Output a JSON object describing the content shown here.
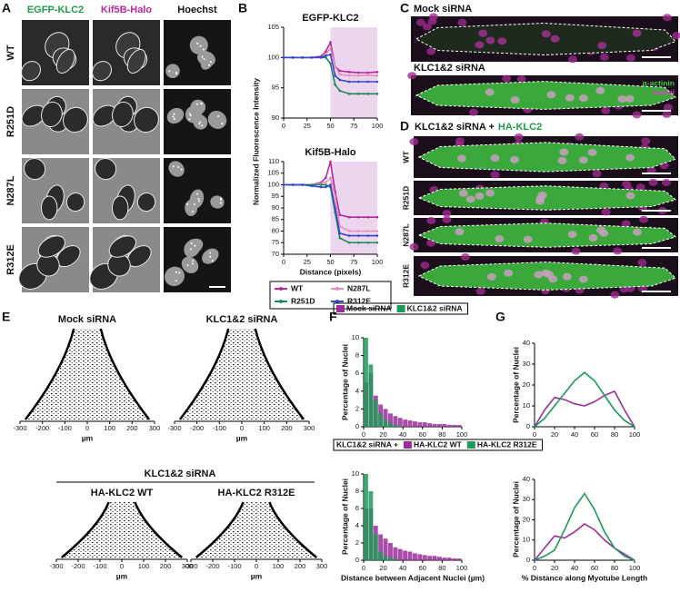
{
  "figure": {
    "panel_labels": [
      "A",
      "B",
      "C",
      "D",
      "E",
      "F",
      "G"
    ],
    "panel_a": {
      "columns": [
        "EGFP-KLC2",
        "Kif5B-Halo",
        "Hoechst"
      ],
      "rows": [
        "WT",
        "R251D",
        "N287L",
        "R312E"
      ]
    },
    "panel_c": {
      "titles": [
        "Mock siRNA",
        "KLC1&2 siRNA"
      ],
      "channels": [
        "α-actinin",
        "nuclei"
      ]
    },
    "panel_d": {
      "title": "KLC1&2 siRNA +",
      "title_highlight": "HA-KLC2",
      "rows": [
        "WT",
        "R251D",
        "N287L",
        "R312E"
      ]
    },
    "panel_e": {
      "titles": [
        "Mock siRNA",
        "KLC1&2 siRNA"
      ],
      "group_title": "KLC1&2 siRNA",
      "subtitles": [
        "HA-KLC2 WT",
        "HA-KLC2 R312E"
      ],
      "xlim": [
        -300,
        300
      ],
      "xticks": [
        -300,
        -200,
        -100,
        0,
        100,
        200,
        300
      ],
      "x_label": "µm"
    }
  },
  "chart_data": [
    {
      "type": "line",
      "title": "EGFP-KLC2",
      "y_label": "Normalized Fluorescence Intensity",
      "markers": true,
      "x": [
        0,
        10,
        20,
        30,
        40,
        45,
        50,
        55,
        60,
        70,
        80,
        90,
        100
      ],
      "xlim": [
        0,
        100
      ],
      "xticks": [
        0,
        25,
        50,
        75,
        100
      ],
      "ylim": [
        90,
        105
      ],
      "yticks": [
        90,
        95,
        100,
        105
      ],
      "highlight_xrange": [
        50,
        100
      ],
      "series": [
        {
          "color": "#b5289c",
          "values": [
            100,
            100,
            100,
            100,
            100.2,
            101,
            102.5,
            98.5,
            97.8,
            97.6,
            97.5,
            97.5,
            97.6
          ]
        },
        {
          "color": "#e88cc0",
          "values": [
            100,
            100,
            100,
            100,
            100,
            100.5,
            101.5,
            98.5,
            97.2,
            97,
            97,
            97.1,
            97
          ]
        },
        {
          "color": "#1a8a55",
          "values": [
            100,
            100,
            100,
            100,
            100,
            100,
            99,
            95.5,
            94.5,
            94,
            94,
            94,
            94
          ]
        },
        {
          "color": "#3545d0",
          "values": [
            100,
            100,
            100,
            100,
            100,
            100.3,
            100.5,
            97,
            96.3,
            96,
            96,
            96,
            96
          ]
        }
      ]
    },
    {
      "type": "line",
      "title": "Kif5B-Halo",
      "x_label": "Distance (pixels)",
      "markers": true,
      "legend": "bottom",
      "x": [
        0,
        10,
        20,
        30,
        40,
        45,
        50,
        55,
        60,
        70,
        80,
        90,
        100
      ],
      "xlim": [
        0,
        100
      ],
      "xticks": [
        0,
        25,
        50,
        75,
        100
      ],
      "ylim": [
        70,
        110
      ],
      "yticks": [
        70,
        75,
        80,
        85,
        90,
        95,
        100,
        105,
        110
      ],
      "highlight_xrange": [
        50,
        100
      ],
      "series": [
        {
          "name": "WT",
          "color": "#b5289c",
          "values": [
            100,
            100,
            100,
            100,
            101,
            103,
            110,
            97,
            87,
            86,
            86,
            86,
            86
          ]
        },
        {
          "name": "N287L",
          "color": "#e88cc0",
          "values": [
            100,
            100,
            100,
            100,
            100.5,
            101,
            103,
            95,
            82,
            80,
            80,
            80,
            80
          ]
        },
        {
          "name": "R251D",
          "color": "#1a8a55",
          "values": [
            100,
            100,
            100,
            100,
            100,
            100,
            99,
            88,
            77,
            75,
            75,
            75,
            75
          ]
        },
        {
          "name": "R312E",
          "color": "#3545d0",
          "values": [
            100,
            100,
            100,
            99.5,
            99,
            99,
            100,
            90,
            79,
            78,
            78,
            78,
            78
          ]
        }
      ]
    },
    {
      "type": "histogram",
      "y_label": "Percentage of Nuclei",
      "legend": "top",
      "bins": [
        0,
        5,
        10,
        15,
        20,
        25,
        30,
        35,
        40,
        45,
        50,
        55,
        60,
        65,
        70,
        75,
        80,
        85,
        90,
        95,
        100
      ],
      "xlim": [
        0,
        100
      ],
      "xticks": [
        0,
        20,
        40,
        60,
        80,
        100
      ],
      "ylim": [
        0,
        10
      ],
      "yticks": [
        0,
        2,
        4,
        6,
        8,
        10
      ],
      "series": [
        {
          "name": "Mock siRNA",
          "color": "#9b2d9b",
          "values": [
            5,
            6,
            3.5,
            2.5,
            2,
            1.5,
            1.2,
            1,
            0.8,
            0.7,
            0.6,
            0.5,
            0.5,
            0.4,
            0.3,
            0.3,
            0.3,
            0.2,
            0.2,
            0.2
          ]
        },
        {
          "name": "KLC1&2 siRNA",
          "color": "#1e9a5a",
          "values": [
            10,
            7,
            3,
            1.5,
            0.8,
            0.4,
            0.2,
            0.1,
            0,
            0,
            0,
            0,
            0,
            0,
            0,
            0,
            0,
            0,
            0,
            0
          ]
        }
      ]
    },
    {
      "type": "histogram",
      "y_label": "Percentage of Nuclei",
      "x_label": "Distance between Adjacent Nuclei (µm)",
      "legend": "top",
      "legend_title": "KLC1&2 siRNA +",
      "bins": [
        0,
        5,
        10,
        15,
        20,
        25,
        30,
        35,
        40,
        45,
        50,
        55,
        60,
        65,
        70,
        75,
        80,
        85,
        90,
        95,
        100
      ],
      "xlim": [
        0,
        100
      ],
      "xticks": [
        0,
        20,
        40,
        60,
        80,
        100
      ],
      "ylim": [
        0,
        10
      ],
      "yticks": [
        0,
        2,
        4,
        6,
        8,
        10
      ],
      "series": [
        {
          "name": "HA-KLC2 WT",
          "color": "#9b2d9b",
          "values": [
            6,
            6,
            4,
            3,
            2.5,
            2,
            1.5,
            1.3,
            1.1,
            1,
            0.8,
            0.7,
            0.6,
            0.5,
            0.5,
            0.4,
            0.3,
            0.3,
            0.2,
            0.2
          ]
        },
        {
          "name": "HA-KLC2 R312E",
          "color": "#1e9a5a",
          "values": [
            10,
            8,
            3,
            1,
            0.5,
            0.3,
            0.2,
            0,
            0,
            0,
            0,
            0,
            0,
            0,
            0,
            0,
            0,
            0,
            0,
            0
          ]
        }
      ]
    },
    {
      "type": "line",
      "y_label": "Percentage of Nuclei",
      "markers": false,
      "x": [
        0,
        10,
        20,
        30,
        40,
        50,
        60,
        70,
        80,
        90,
        100
      ],
      "xlim": [
        0,
        100
      ],
      "xticks": [
        0,
        20,
        40,
        60,
        80,
        100
      ],
      "ylim": [
        0,
        40
      ],
      "yticks": [
        0,
        10,
        20,
        30,
        40
      ],
      "series": [
        {
          "color": "#9b2d9b",
          "values": [
            0,
            8,
            14,
            13,
            11,
            10,
            12,
            15,
            17,
            8,
            0
          ]
        },
        {
          "color": "#1e9a5a",
          "values": [
            0,
            4,
            10,
            16,
            22,
            26,
            22,
            15,
            8,
            3,
            0
          ]
        }
      ]
    },
    {
      "type": "line",
      "y_label": "Percentage of Nuclei",
      "x_label": "% Distance along Myotube Length",
      "markers": false,
      "x": [
        0,
        10,
        20,
        30,
        40,
        50,
        60,
        70,
        80,
        90,
        100
      ],
      "xlim": [
        0,
        100
      ],
      "xticks": [
        0,
        20,
        40,
        60,
        80,
        100
      ],
      "ylim": [
        0,
        40
      ],
      "yticks": [
        0,
        10,
        20,
        30,
        40
      ],
      "series": [
        {
          "color": "#9b2d9b",
          "values": [
            0,
            6,
            12,
            11,
            14,
            18,
            15,
            10,
            6,
            3,
            0
          ]
        },
        {
          "color": "#1e9a5a",
          "values": [
            0,
            2,
            5,
            15,
            26,
            33,
            25,
            14,
            6,
            2,
            0
          ]
        }
      ]
    }
  ]
}
